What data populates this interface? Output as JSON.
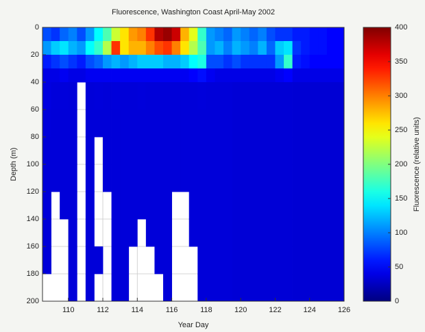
{
  "chart_data": {
    "type": "heatmap",
    "title": "Fluorescence, Washington Coast April-May 2002",
    "x_label": "Year Day",
    "y_label": "Depth (m)",
    "colorbar_label": "Fluorescence (relative units)",
    "colormap": "jet",
    "grid": true,
    "y_reversed": true,
    "x": [
      108.5,
      109,
      109.5,
      110,
      110.5,
      111,
      111.5,
      112,
      112.5,
      113,
      113.5,
      114,
      114.5,
      115,
      115.5,
      116,
      116.5,
      117,
      117.5,
      118,
      118.5,
      119,
      119.5,
      120,
      120.5,
      121,
      121.5,
      122,
      122.5,
      123,
      123.5,
      124,
      124.5,
      125,
      125.5,
      126
    ],
    "y": [
      0,
      10,
      20,
      30,
      40,
      60,
      80,
      100,
      120,
      140,
      160,
      180,
      200
    ],
    "z": [
      [
        80,
        70,
        90,
        100,
        80,
        110,
        150,
        180,
        230,
        260,
        290,
        300,
        330,
        380,
        390,
        370,
        280,
        240,
        170,
        110,
        100,
        90,
        110,
        100,
        90,
        100,
        80,
        70,
        70,
        60,
        60,
        55,
        55,
        50,
        50
      ],
      [
        110,
        130,
        140,
        120,
        110,
        150,
        170,
        220,
        330,
        260,
        280,
        280,
        300,
        320,
        330,
        300,
        260,
        220,
        180,
        110,
        120,
        100,
        120,
        110,
        100,
        120,
        90,
        130,
        140,
        70,
        60,
        55,
        55,
        50,
        50
      ],
      [
        60,
        70,
        80,
        70,
        60,
        80,
        90,
        110,
        120,
        110,
        120,
        130,
        130,
        130,
        120,
        120,
        130,
        150,
        160,
        80,
        80,
        70,
        80,
        70,
        70,
        70,
        70,
        110,
        170,
        60,
        55,
        50,
        50,
        50,
        50
      ],
      [
        40,
        40,
        45,
        40,
        40,
        45,
        45,
        45,
        45,
        45,
        45,
        45,
        45,
        45,
        45,
        45,
        45,
        50,
        55,
        45,
        40,
        40,
        40,
        40,
        40,
        40,
        40,
        45,
        50,
        40,
        40,
        40,
        40,
        40,
        40
      ],
      [
        38,
        36,
        36,
        35,
        null,
        35,
        36,
        35,
        36,
        35,
        35,
        36,
        35,
        35,
        35,
        35,
        35,
        35,
        36,
        35,
        35,
        35,
        34,
        34,
        34,
        34,
        34,
        34,
        34,
        33,
        33,
        33,
        33,
        33,
        33
      ],
      [
        36,
        35,
        35,
        35,
        null,
        35,
        35,
        35,
        35,
        35,
        35,
        35,
        35,
        35,
        35,
        35,
        35,
        35,
        35,
        35,
        35,
        35,
        34,
        34,
        34,
        34,
        34,
        34,
        34,
        33,
        33,
        33,
        33,
        33,
        33
      ],
      [
        35,
        35,
        35,
        35,
        null,
        35,
        null,
        35,
        35,
        35,
        35,
        35,
        35,
        35,
        35,
        35,
        35,
        35,
        35,
        35,
        35,
        35,
        34,
        34,
        34,
        34,
        34,
        34,
        34,
        33,
        33,
        33,
        33,
        33,
        33
      ],
      [
        35,
        35,
        35,
        35,
        null,
        35,
        null,
        35,
        35,
        35,
        35,
        35,
        35,
        35,
        35,
        35,
        35,
        35,
        35,
        35,
        35,
        35,
        34,
        34,
        34,
        34,
        34,
        34,
        34,
        33,
        33,
        33,
        33,
        33,
        33
      ],
      [
        35,
        null,
        35,
        35,
        null,
        35,
        null,
        null,
        35,
        35,
        35,
        35,
        35,
        35,
        35,
        null,
        null,
        35,
        35,
        35,
        35,
        35,
        34,
        34,
        34,
        34,
        34,
        34,
        34,
        33,
        33,
        33,
        33,
        33,
        33
      ],
      [
        35,
        null,
        null,
        35,
        null,
        35,
        null,
        null,
        35,
        35,
        35,
        null,
        35,
        35,
        35,
        null,
        null,
        35,
        35,
        35,
        35,
        35,
        34,
        34,
        34,
        34,
        34,
        34,
        34,
        33,
        33,
        33,
        33,
        33,
        33
      ],
      [
        35,
        null,
        null,
        35,
        null,
        35,
        35,
        null,
        35,
        35,
        null,
        null,
        null,
        35,
        35,
        null,
        null,
        null,
        35,
        35,
        35,
        35,
        34,
        34,
        34,
        34,
        34,
        34,
        34,
        33,
        33,
        33,
        33,
        33,
        33
      ],
      [
        null,
        null,
        null,
        35,
        null,
        35,
        null,
        null,
        35,
        35,
        null,
        null,
        null,
        null,
        35,
        null,
        null,
        null,
        35,
        35,
        35,
        35,
        34,
        34,
        34,
        34,
        34,
        34,
        34,
        33,
        33,
        33,
        33,
        33,
        33
      ]
    ],
    "xlim": [
      108.5,
      126
    ],
    "xticks": [
      110,
      112,
      114,
      116,
      118,
      120,
      122,
      124,
      126
    ],
    "ylim": [
      0,
      200
    ],
    "yticks": [
      0,
      20,
      40,
      60,
      80,
      100,
      120,
      140,
      160,
      180,
      200
    ],
    "clim": [
      0,
      400
    ],
    "cticks": [
      0,
      50,
      100,
      150,
      200,
      250,
      300,
      350,
      400
    ]
  }
}
